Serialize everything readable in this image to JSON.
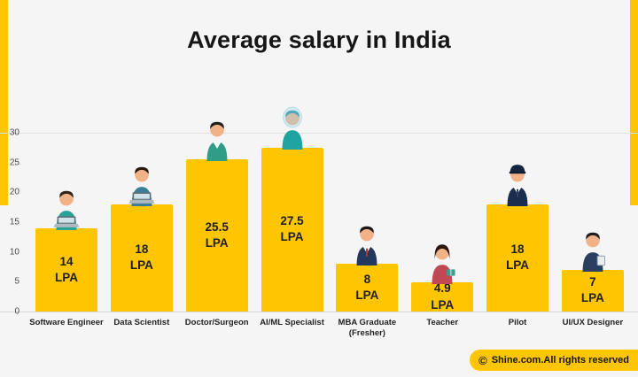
{
  "page": {
    "accent_color": "#FFC600",
    "background_color": "#f5f5f6",
    "footer": {
      "copyright_symbol": "©",
      "text": "Shine.com.All rights reserved"
    }
  },
  "chart_data": {
    "type": "bar",
    "title": "Average salary in India",
    "xlabel": "",
    "ylabel": "",
    "unit": "LPA",
    "ylim": [
      0,
      30
    ],
    "yticks": [
      0,
      5,
      10,
      15,
      20,
      25,
      30
    ],
    "legend": "none",
    "grid": "top-line-only",
    "bar_color": "#FFC600",
    "categories": [
      "Software Engineer",
      "Data Scientist",
      "Doctor/Surgeon",
      "AI/ML Specialist",
      "MBA Graduate (Fresher)",
      "Teacher",
      "Pilot",
      "UI/UX Designer"
    ],
    "values": [
      14,
      18,
      25.5,
      27.5,
      8,
      4.9,
      18,
      7
    ],
    "items": [
      {
        "label": "Software Engineer",
        "value": 14,
        "value_text": "14",
        "icon": "software-engineer-person-icon",
        "shirt": "#29a396",
        "hair": "#33241a",
        "details": [
          "laptop"
        ]
      },
      {
        "label": "Data Scientist",
        "value": 18,
        "value_text": "18",
        "icon": "data-scientist-person-icon",
        "shirt": "#3e7f96",
        "hair": "#26170f",
        "details": [
          "laptop"
        ]
      },
      {
        "label": "Doctor/Surgeon",
        "value": 25.5,
        "value_text": "25.5",
        "icon": "doctor-person-icon",
        "shirt": "#2f9e86",
        "hair": "#1f1f1f",
        "details": [
          "vneck"
        ]
      },
      {
        "label": "AI/ML Specialist",
        "value": 27.5,
        "value_text": "27.5",
        "icon": "ai-ml-specialist-person-icon",
        "shirt": "#1fa3a0",
        "hair": "#1f8ca0",
        "details": [
          "shield"
        ]
      },
      {
        "label": "MBA Graduate (Fresher)",
        "value": 8,
        "value_text": "8",
        "icon": "mba-graduate-person-icon",
        "shirt": "#20395c",
        "hair": "#181818",
        "details": [
          "vneck",
          "tie"
        ],
        "tie": "#b03a2e"
      },
      {
        "label": "Teacher",
        "value": 4.9,
        "value_text": "4.9",
        "icon": "teacher-person-icon",
        "shirt": "#c14953",
        "hair": "#2a160d",
        "details": [
          "longhair",
          "book"
        ]
      },
      {
        "label": "Pilot",
        "value": 18,
        "value_text": "18",
        "icon": "pilot-person-icon",
        "shirt": "#1b2d4f",
        "hair": "#181818",
        "details": [
          "cap",
          "vneck",
          "tie"
        ],
        "tie": "#30425e"
      },
      {
        "label": "UI/UX Designer",
        "value": 7,
        "value_text": "7",
        "icon": "uiux-designer-person-icon",
        "shirt": "#2a3f5f",
        "hair": "#1f1f1f",
        "details": [
          "tablet"
        ]
      }
    ]
  }
}
